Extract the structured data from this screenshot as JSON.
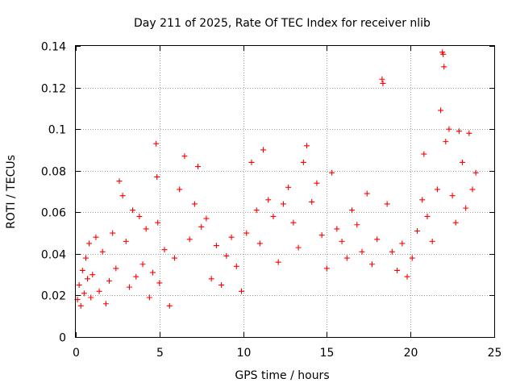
{
  "chart_data": {
    "type": "scatter",
    "title": "Day 211 of 2025, Rate Of TEC Index for receiver nlib",
    "xlabel": "GPS time / hours",
    "ylabel": "ROTI / TECUs",
    "xlim": [
      0,
      25
    ],
    "ylim": [
      0,
      0.14
    ],
    "xticks": [
      "0",
      "5",
      "10",
      "15",
      "20",
      "25"
    ],
    "yticks": [
      "0",
      "0.02",
      "0.04",
      "0.06",
      "0.08",
      "0.1",
      "0.12",
      "0.14"
    ],
    "grid": true,
    "marker": "+",
    "color": "#ff0000",
    "series": [
      {
        "points": [
          [
            0.1,
            0.018
          ],
          [
            0.2,
            0.025
          ],
          [
            0.3,
            0.015
          ],
          [
            0.4,
            0.032
          ],
          [
            0.5,
            0.021
          ],
          [
            0.6,
            0.038
          ],
          [
            0.7,
            0.028
          ],
          [
            0.8,
            0.045
          ],
          [
            0.9,
            0.019
          ],
          [
            1.0,
            0.03
          ],
          [
            1.2,
            0.048
          ],
          [
            1.4,
            0.022
          ],
          [
            1.6,
            0.041
          ],
          [
            1.8,
            0.016
          ],
          [
            2.0,
            0.027
          ],
          [
            2.2,
            0.05
          ],
          [
            2.4,
            0.033
          ],
          [
            2.6,
            0.075
          ],
          [
            2.8,
            0.068
          ],
          [
            3.0,
            0.046
          ],
          [
            3.2,
            0.024
          ],
          [
            3.4,
            0.061
          ],
          [
            3.6,
            0.029
          ],
          [
            3.8,
            0.058
          ],
          [
            4.0,
            0.035
          ],
          [
            4.2,
            0.052
          ],
          [
            4.4,
            0.019
          ],
          [
            4.6,
            0.031
          ],
          [
            4.8,
            0.093
          ],
          [
            4.85,
            0.077
          ],
          [
            4.9,
            0.055
          ],
          [
            5.0,
            0.026
          ],
          [
            5.3,
            0.042
          ],
          [
            5.6,
            0.015
          ],
          [
            5.9,
            0.038
          ],
          [
            6.2,
            0.071
          ],
          [
            6.5,
            0.087
          ],
          [
            6.8,
            0.047
          ],
          [
            7.1,
            0.064
          ],
          [
            7.3,
            0.082
          ],
          [
            7.5,
            0.053
          ],
          [
            7.8,
            0.057
          ],
          [
            8.1,
            0.028
          ],
          [
            8.4,
            0.044
          ],
          [
            8.7,
            0.025
          ],
          [
            9.0,
            0.039
          ],
          [
            9.3,
            0.048
          ],
          [
            9.6,
            0.034
          ],
          [
            9.9,
            0.022
          ],
          [
            10.2,
            0.05
          ],
          [
            10.5,
            0.084
          ],
          [
            10.8,
            0.061
          ],
          [
            11.0,
            0.045
          ],
          [
            11.2,
            0.09
          ],
          [
            11.5,
            0.066
          ],
          [
            11.8,
            0.058
          ],
          [
            12.1,
            0.036
          ],
          [
            12.4,
            0.064
          ],
          [
            12.7,
            0.072
          ],
          [
            13.0,
            0.055
          ],
          [
            13.3,
            0.043
          ],
          [
            13.6,
            0.084
          ],
          [
            13.8,
            0.092
          ],
          [
            14.1,
            0.065
          ],
          [
            14.4,
            0.074
          ],
          [
            14.7,
            0.049
          ],
          [
            15.0,
            0.033
          ],
          [
            15.3,
            0.079
          ],
          [
            15.6,
            0.052
          ],
          [
            15.9,
            0.046
          ],
          [
            16.2,
            0.038
          ],
          [
            16.5,
            0.061
          ],
          [
            16.8,
            0.054
          ],
          [
            17.1,
            0.041
          ],
          [
            17.4,
            0.069
          ],
          [
            17.7,
            0.035
          ],
          [
            18.0,
            0.047
          ],
          [
            18.3,
            0.124
          ],
          [
            18.35,
            0.122
          ],
          [
            18.6,
            0.064
          ],
          [
            18.9,
            0.041
          ],
          [
            19.2,
            0.032
          ],
          [
            19.5,
            0.045
          ],
          [
            19.8,
            0.029
          ],
          [
            20.1,
            0.038
          ],
          [
            20.4,
            0.051
          ],
          [
            20.7,
            0.066
          ],
          [
            20.8,
            0.088
          ],
          [
            21.0,
            0.058
          ],
          [
            21.3,
            0.046
          ],
          [
            21.6,
            0.071
          ],
          [
            21.8,
            0.109
          ],
          [
            21.9,
            0.137
          ],
          [
            21.95,
            0.136
          ],
          [
            22.0,
            0.13
          ],
          [
            22.1,
            0.094
          ],
          [
            22.3,
            0.1
          ],
          [
            22.5,
            0.068
          ],
          [
            22.7,
            0.055
          ],
          [
            22.9,
            0.099
          ],
          [
            23.1,
            0.084
          ],
          [
            23.3,
            0.062
          ],
          [
            23.5,
            0.098
          ],
          [
            23.7,
            0.071
          ],
          [
            23.9,
            0.079
          ]
        ]
      }
    ]
  }
}
